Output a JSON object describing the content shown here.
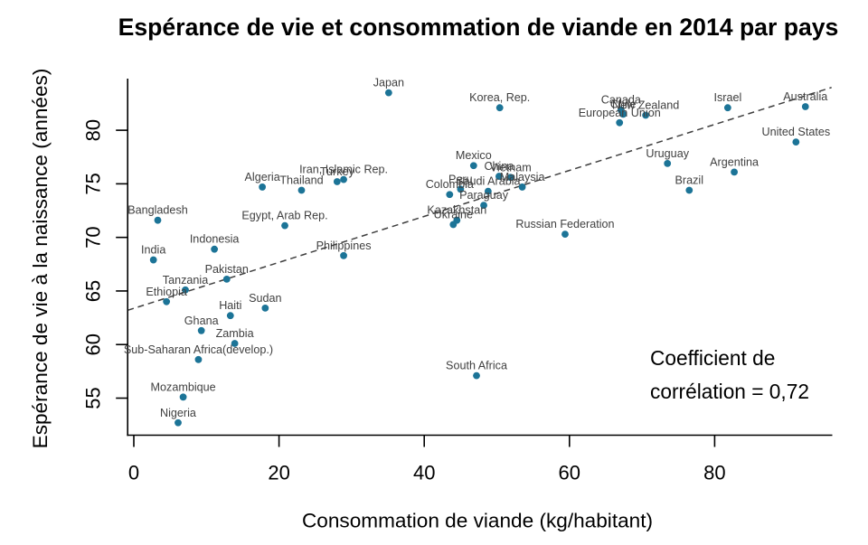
{
  "chart_data": {
    "type": "scatter",
    "title": "Espérance de vie et consommation de viande en 2014 par pays",
    "xlabel": "Consommation de viande (kg/habitant)",
    "ylabel": "Espérance de vie à la naissance (années)",
    "xlim": [
      -0.9,
      96.2
    ],
    "ylim": [
      51.5,
      84.8
    ],
    "xticks": [
      0,
      20,
      40,
      60,
      80
    ],
    "yticks": [
      55,
      60,
      65,
      70,
      75,
      80
    ],
    "grid": false,
    "legend": "none",
    "point_color": "#1c7497",
    "label_color": "#404040",
    "trend_color": "#3f3f3f",
    "axis_color": "#000000",
    "background_color": "#ffffff",
    "trend_line": {
      "style": "dashed",
      "intercept": 63.38,
      "slope": 0.2145,
      "x_start": -0.85,
      "x_end": 96.1
    },
    "annotation": {
      "line1": "Coefficient de",
      "line2": "corrélation = 0,72",
      "correlation": "0,72"
    },
    "points": [
      {
        "name": "Japan",
        "x": 35.1,
        "y": 83.5
      },
      {
        "name": "Korea, Rep.",
        "x": 50.4,
        "y": 82.1
      },
      {
        "name": "Canada",
        "x": 67.1,
        "y": 81.9
      },
      {
        "name": "Chile",
        "x": 67.4,
        "y": 81.5
      },
      {
        "name": "New Zealand",
        "x": 70.5,
        "y": 81.4
      },
      {
        "name": "European Union",
        "x": 66.9,
        "y": 80.7
      },
      {
        "name": "Israel",
        "x": 81.8,
        "y": 82.1
      },
      {
        "name": "Australia",
        "x": 92.5,
        "y": 82.2
      },
      {
        "name": "United States",
        "x": 91.2,
        "y": 78.9
      },
      {
        "name": "Uruguay",
        "x": 73.5,
        "y": 76.9
      },
      {
        "name": "Argentina",
        "x": 82.7,
        "y": 76.1
      },
      {
        "name": "Brazil",
        "x": 76.5,
        "y": 74.4
      },
      {
        "name": "Mexico",
        "x": 46.8,
        "y": 76.7
      },
      {
        "name": "China",
        "x": 50.3,
        "y": 75.7
      },
      {
        "name": "Vietnam",
        "x": 51.9,
        "y": 75.6
      },
      {
        "name": "Malaysia",
        "x": 53.5,
        "y": 74.7
      },
      {
        "name": "Saudi Arabia",
        "x": 48.8,
        "y": 74.3
      },
      {
        "name": "Peru",
        "x": 45.0,
        "y": 74.5
      },
      {
        "name": "Colombia",
        "x": 43.5,
        "y": 74.0
      },
      {
        "name": "Paraguay",
        "x": 48.2,
        "y": 73.0
      },
      {
        "name": "Kazakhstan",
        "x": 44.5,
        "y": 71.6
      },
      {
        "name": "Ukraine",
        "x": 44.0,
        "y": 71.2
      },
      {
        "name": "Russian Federation",
        "x": 59.4,
        "y": 70.3
      },
      {
        "name": "Turkey",
        "x": 28.0,
        "y": 75.2
      },
      {
        "name": "Iran, Islamic Rep.",
        "x": 28.9,
        "y": 75.4
      },
      {
        "name": "Algeria",
        "x": 17.7,
        "y": 74.7
      },
      {
        "name": "Thailand",
        "x": 23.1,
        "y": 74.4
      },
      {
        "name": "Egypt, Arab Rep.",
        "x": 20.8,
        "y": 71.1
      },
      {
        "name": "Bangladesh",
        "x": 3.3,
        "y": 71.6
      },
      {
        "name": "India",
        "x": 2.7,
        "y": 67.9
      },
      {
        "name": "Indonesia",
        "x": 11.1,
        "y": 68.9
      },
      {
        "name": "Philippines",
        "x": 28.9,
        "y": 68.3
      },
      {
        "name": "Pakistan",
        "x": 12.8,
        "y": 66.1
      },
      {
        "name": "Tanzania",
        "x": 7.1,
        "y": 65.1
      },
      {
        "name": "Ethiopia",
        "x": 4.5,
        "y": 64.0
      },
      {
        "name": "Sudan",
        "x": 18.1,
        "y": 63.4
      },
      {
        "name": "Haiti",
        "x": 13.3,
        "y": 62.7
      },
      {
        "name": "Ghana",
        "x": 9.3,
        "y": 61.3
      },
      {
        "name": "Zambia",
        "x": 13.9,
        "y": 60.1
      },
      {
        "name": "Sub-Saharan Africa(develop.)",
        "x": 8.9,
        "y": 58.6
      },
      {
        "name": "Mozambique",
        "x": 6.8,
        "y": 55.1
      },
      {
        "name": "Nigeria",
        "x": 6.1,
        "y": 52.7
      },
      {
        "name": "South Africa",
        "x": 47.2,
        "y": 57.1
      }
    ]
  }
}
